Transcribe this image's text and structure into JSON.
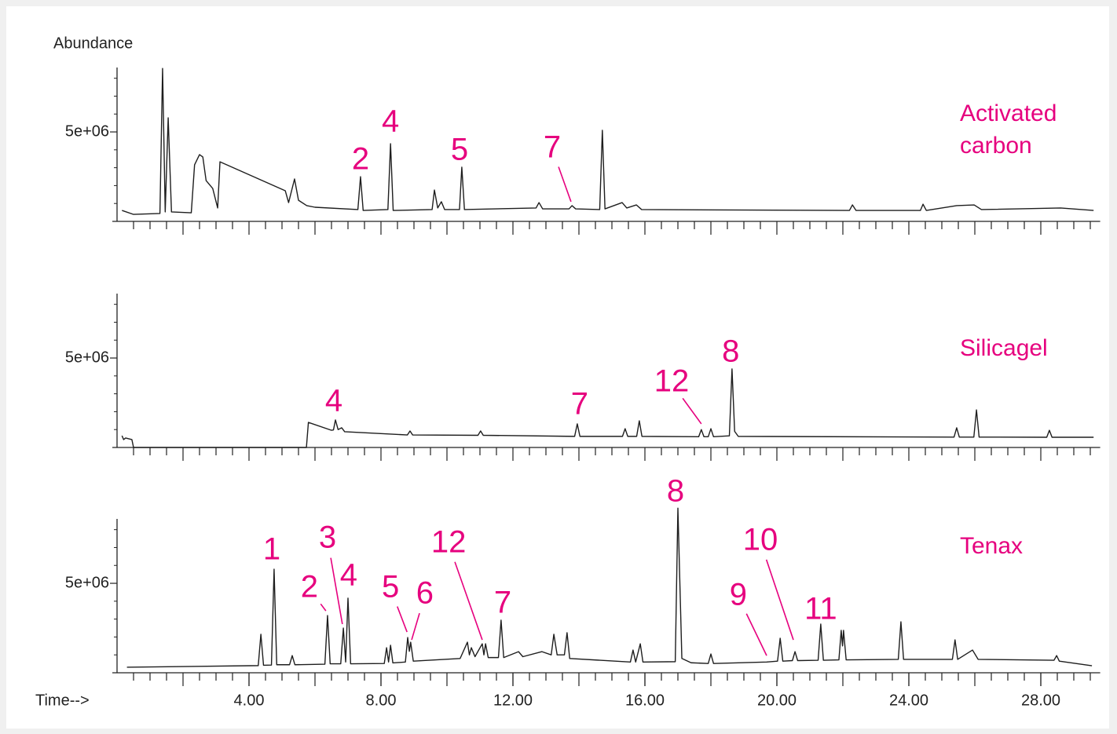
{
  "chart_data": [
    {
      "type": "line",
      "ylabel": "Abundance",
      "xlim": [
        0,
        29.8
      ],
      "ylim": [
        0,
        8600000
      ],
      "yticks": [
        {
          "value": 5000000,
          "label": "5e+06"
        }
      ],
      "yminorticks": [
        1000000,
        2000000,
        3000000,
        4000000,
        6000000,
        7000000,
        8000000
      ],
      "xminorticks": [
        0.5,
        1,
        1.5,
        2,
        2.5,
        3,
        3.5,
        4,
        4.5,
        5,
        5.5,
        6,
        6.5,
        7,
        7.5,
        8,
        8.5,
        9,
        9.5,
        10,
        10.5,
        11,
        11.5,
        12,
        12.5,
        13,
        13.5,
        14,
        14.5,
        15,
        15.5,
        16,
        16.5,
        17,
        17.5,
        18,
        18.5,
        19,
        19.5,
        20,
        20.5,
        21,
        21.5,
        22,
        22.5,
        23,
        23.5,
        24,
        24.5,
        25,
        25.5,
        26,
        26.5,
        27,
        27.5,
        28,
        28.5,
        29,
        29.5
      ],
      "label_color": "#e6007e",
      "series": [
        {
          "name": "Activated carbon",
          "color": "#1e1e1e",
          "x": [
            0.15,
            0.5,
            1.3,
            1.38,
            1.46,
            1.55,
            1.65,
            2.25,
            2.35,
            2.5,
            2.6,
            2.7,
            2.9,
            3.05,
            3.12,
            5.1,
            5.2,
            5.38,
            5.5,
            5.75,
            6.0,
            7.3,
            7.38,
            7.46,
            8.21,
            8.29,
            8.37,
            9.55,
            9.62,
            9.72,
            9.83,
            9.93,
            10.38,
            10.45,
            10.53,
            12.7,
            12.79,
            12.9,
            13.7,
            13.79,
            13.9,
            14.63,
            14.71,
            14.79,
            15.31,
            15.45,
            15.74,
            15.9,
            22.2,
            22.29,
            22.4,
            24.35,
            24.43,
            24.53,
            25.45,
            25.98,
            26.2,
            28.6,
            29.6
          ],
          "values": [
            610000,
            390000,
            440000,
            8550000,
            530000,
            5790000,
            530000,
            480000,
            3160000,
            3730000,
            3600000,
            2280000,
            1840000,
            750000,
            3330000,
            1710000,
            1050000,
            2370000,
            1180000,
            880000,
            790000,
            660000,
            2500000,
            610000,
            660000,
            4340000,
            610000,
            660000,
            1750000,
            750000,
            1100000,
            660000,
            660000,
            3030000,
            660000,
            750000,
            1050000,
            700000,
            700000,
            880000,
            700000,
            660000,
            5090000,
            700000,
            1050000,
            750000,
            920000,
            660000,
            610000,
            920000,
            610000,
            610000,
            960000,
            610000,
            880000,
            920000,
            660000,
            750000,
            610000
          ]
        }
      ],
      "annotations": [
        {
          "text": "2",
          "x": 7.38,
          "y": 3380000
        },
        {
          "text": "4",
          "x": 8.29,
          "y": 5480000
        },
        {
          "text": "5",
          "x": 10.38,
          "y": 3900000
        },
        {
          "text": "7",
          "x": 13.19,
          "y": 4040000,
          "arrow_to": [
            13.76,
            1100000
          ]
        }
      ]
    },
    {
      "type": "line",
      "xlim": [
        0,
        29.8
      ],
      "ylim": [
        0,
        8600000
      ],
      "yticks": [
        {
          "value": 5000000,
          "label": "5e+06"
        }
      ],
      "yminorticks": [
        1000000,
        2000000,
        3000000,
        4000000,
        6000000,
        7000000,
        8000000
      ],
      "xminorticks": [
        0.5,
        1,
        1.5,
        2,
        2.5,
        3,
        3.5,
        4,
        4.5,
        5,
        5.5,
        6,
        6.5,
        7,
        7.5,
        8,
        8.5,
        9,
        9.5,
        10,
        10.5,
        11,
        11.5,
        12,
        12.5,
        13,
        13.5,
        14,
        14.5,
        15,
        15.5,
        16,
        16.5,
        17,
        17.5,
        18,
        18.5,
        19,
        19.5,
        20,
        20.5,
        21,
        21.5,
        22,
        22.5,
        23,
        23.5,
        24,
        24.5,
        25,
        25.5,
        26,
        26.5,
        27,
        27.5,
        28,
        28.5,
        29,
        29.5
      ],
      "label_color": "#e6007e",
      "series": [
        {
          "name": "Silicagel",
          "color": "#1e1e1e",
          "x": [
            0.15,
            0.2,
            0.26,
            0.45,
            0.5,
            5.74,
            5.8,
            6.5,
            6.56,
            6.62,
            6.7,
            6.81,
            6.9,
            8.8,
            8.88,
            8.96,
            10.94,
            11.02,
            11.1,
            13.87,
            13.95,
            14.03,
            15.32,
            15.4,
            15.48,
            15.75,
            15.83,
            15.91,
            17.63,
            17.71,
            17.79,
            17.92,
            18.0,
            18.08,
            18.56,
            18.64,
            18.72,
            18.83,
            25.37,
            25.45,
            25.53,
            25.97,
            26.05,
            26.13,
            28.18,
            28.26,
            28.34,
            29.6
          ],
          "values": [
            660000,
            440000,
            530000,
            440000,
            0,
            0,
            1400000,
            960000,
            980000,
            1540000,
            1000000,
            1100000,
            880000,
            700000,
            920000,
            700000,
            680000,
            920000,
            680000,
            620000,
            1320000,
            620000,
            620000,
            1050000,
            620000,
            620000,
            1490000,
            620000,
            600000,
            1000000,
            600000,
            600000,
            1050000,
            600000,
            650000,
            4390000,
            900000,
            620000,
            580000,
            1100000,
            580000,
            580000,
            2100000,
            580000,
            570000,
            960000,
            570000,
            570000
          ]
        }
      ],
      "annotations": [
        {
          "text": "4",
          "x": 6.57,
          "y": 2500000
        },
        {
          "text": "7",
          "x": 14.02,
          "y": 2320000
        },
        {
          "text": "12",
          "x": 16.81,
          "y": 3600000,
          "arrow_to": [
            17.71,
            1320000
          ]
        },
        {
          "text": "8",
          "x": 18.6,
          "y": 5260000
        }
      ]
    },
    {
      "type": "line",
      "xlabel": "Time-->",
      "xlim": [
        0,
        29.8
      ],
      "ylim": [
        0,
        8600000
      ],
      "yticks": [
        {
          "value": 5000000,
          "label": "5e+06"
        }
      ],
      "yminorticks": [
        1000000,
        2000000,
        3000000,
        4000000,
        6000000,
        7000000,
        8000000
      ],
      "xticks": [
        {
          "value": 4,
          "label": "4.00"
        },
        {
          "value": 8,
          "label": "8.00"
        },
        {
          "value": 12,
          "label": "12.00"
        },
        {
          "value": 16,
          "label": "16.00"
        },
        {
          "value": 20,
          "label": "20.00"
        },
        {
          "value": 24,
          "label": "24.00"
        },
        {
          "value": 28,
          "label": "28.00"
        }
      ],
      "xminorticks": [
        0.5,
        1,
        1.5,
        2,
        2.5,
        3,
        3.5,
        4,
        4.5,
        5,
        5.5,
        6,
        6.5,
        7,
        7.5,
        8,
        8.5,
        9,
        9.5,
        10,
        10.5,
        11,
        11.5,
        12,
        12.5,
        13,
        13.5,
        14,
        14.5,
        15,
        15.5,
        16,
        16.5,
        17,
        17.5,
        18,
        18.5,
        19,
        19.5,
        20,
        20.5,
        21,
        21.5,
        22,
        22.5,
        23,
        23.5,
        24,
        24.5,
        25,
        25.5,
        26,
        26.5,
        27,
        27.5,
        28,
        28.5,
        29,
        29.5
      ],
      "label_color": "#e6007e",
      "series": [
        {
          "name": "Tenax",
          "color": "#1e1e1e",
          "x": [
            0.3,
            4.28,
            4.36,
            4.44,
            4.68,
            4.76,
            4.84,
            5.23,
            5.31,
            5.39,
            6.3,
            6.38,
            6.46,
            6.78,
            6.86,
            6.93,
            7.0,
            7.08,
            8.1,
            8.17,
            8.23,
            8.29,
            8.36,
            8.74,
            8.81,
            8.86,
            8.9,
            8.98,
            10.4,
            10.62,
            10.68,
            10.74,
            10.85,
            11.07,
            11.12,
            11.17,
            11.25,
            11.56,
            11.64,
            11.72,
            12.17,
            12.3,
            12.88,
            13.16,
            13.24,
            13.34,
            13.56,
            13.64,
            13.72,
            15.56,
            15.64,
            15.72,
            15.86,
            15.94,
            16.92,
            17.0,
            17.12,
            17.4,
            17.92,
            18.0,
            18.08,
            19.69,
            20.02,
            20.1,
            20.18,
            20.47,
            20.55,
            20.63,
            21.25,
            21.33,
            21.41,
            21.88,
            21.95,
            21.99,
            22.02,
            22.1,
            23.68,
            23.76,
            23.84,
            25.32,
            25.4,
            25.48,
            25.93,
            26.1,
            28.4,
            28.48,
            28.56,
            29.55
          ],
          "values": [
            310000,
            400000,
            2150000,
            420000,
            430000,
            5790000,
            450000,
            450000,
            960000,
            450000,
            480000,
            3200000,
            500000,
            500000,
            2500000,
            600000,
            4170000,
            500000,
            520000,
            1400000,
            600000,
            1540000,
            550000,
            600000,
            1970000,
            1200000,
            1710000,
            650000,
            800000,
            1710000,
            1000000,
            1400000,
            900000,
            1620000,
            1000000,
            1620000,
            850000,
            850000,
            2940000,
            850000,
            1180000,
            900000,
            1180000,
            1000000,
            2150000,
            1000000,
            1000000,
            2240000,
            800000,
            600000,
            1270000,
            600000,
            1620000,
            600000,
            620000,
            9200000,
            800000,
            560000,
            520000,
            1050000,
            520000,
            600000,
            650000,
            1930000,
            650000,
            680000,
            1180000,
            680000,
            700000,
            2720000,
            700000,
            720000,
            2370000,
            1500000,
            2370000,
            720000,
            750000,
            2850000,
            750000,
            750000,
            1840000,
            750000,
            1270000,
            750000,
            700000,
            960000,
            650000,
            390000
          ]
        }
      ],
      "annotations": [
        {
          "text": "1",
          "x": 4.69,
          "y": 6800000
        },
        {
          "text": "2",
          "x": 5.83,
          "y": 4690000,
          "arrow_to": [
            6.33,
            3460000
          ]
        },
        {
          "text": "3",
          "x": 6.38,
          "y": 7460000,
          "arrow_to": [
            6.83,
            2720000
          ]
        },
        {
          "text": "4",
          "x": 7.02,
          "y": 5350000
        },
        {
          "text": "5",
          "x": 8.29,
          "y": 4690000,
          "arrow_to": [
            8.79,
            2280000
          ]
        },
        {
          "text": "6",
          "x": 9.33,
          "y": 4340000,
          "arrow_to": [
            8.93,
            1840000
          ]
        },
        {
          "text": "12",
          "x": 10.05,
          "y": 7190000,
          "arrow_to": [
            11.07,
            1840000
          ]
        },
        {
          "text": "7",
          "x": 11.69,
          "y": 3820000
        },
        {
          "text": "8",
          "x": 16.93,
          "y": 10040000
        },
        {
          "text": "9",
          "x": 18.83,
          "y": 4250000,
          "arrow_to": [
            19.69,
            960000
          ]
        },
        {
          "text": "10",
          "x": 19.5,
          "y": 7320000,
          "arrow_to": [
            20.5,
            1840000
          ]
        },
        {
          "text": "11",
          "x": 21.33,
          "y": 3460000
        }
      ]
    }
  ]
}
